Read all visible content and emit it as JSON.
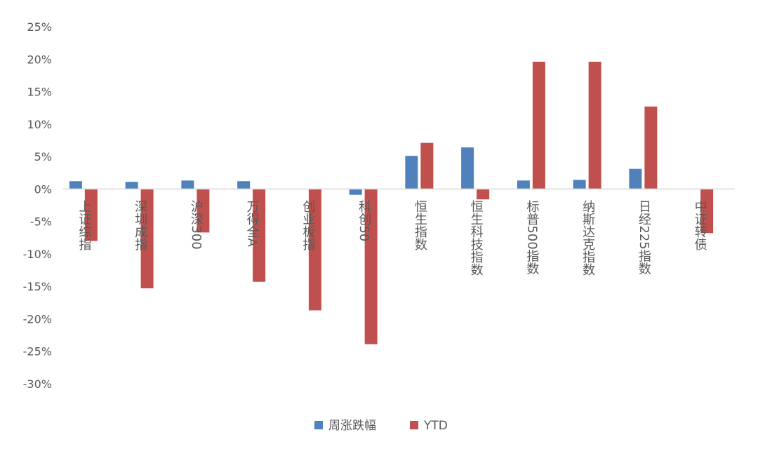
{
  "chart_data": {
    "type": "bar",
    "categories": [
      "上证综指",
      "深圳成指",
      "沪深300",
      "万得全A",
      "创业板指",
      "科创50",
      "恒生指数",
      "恒生科技指数",
      "标普500指数",
      "纳斯达克指数",
      "日经225指数",
      "中证转债"
    ],
    "series": [
      {
        "name": "周涨跌幅",
        "color": "#4F81BD",
        "values": [
          1.2,
          1.1,
          1.3,
          1.2,
          0.0,
          -0.9,
          5.1,
          6.4,
          1.3,
          1.4,
          3.1,
          0.0
        ]
      },
      {
        "name": "YTD",
        "color": "#C0504D",
        "values": [
          -8.0,
          -15.3,
          -6.7,
          -14.3,
          -18.7,
          -23.9,
          7.1,
          -1.6,
          19.6,
          19.6,
          12.7,
          -6.8
        ]
      }
    ],
    "ylim": [
      -30,
      25
    ],
    "y_tick_step": 5,
    "y_ticks": [
      "25%",
      "20%",
      "15%",
      "10%",
      "5%",
      "0%",
      "-5%",
      "-10%",
      "-15%",
      "-20%",
      "-25%",
      "-30%"
    ],
    "grid": false,
    "legend_placement": "bottom"
  }
}
